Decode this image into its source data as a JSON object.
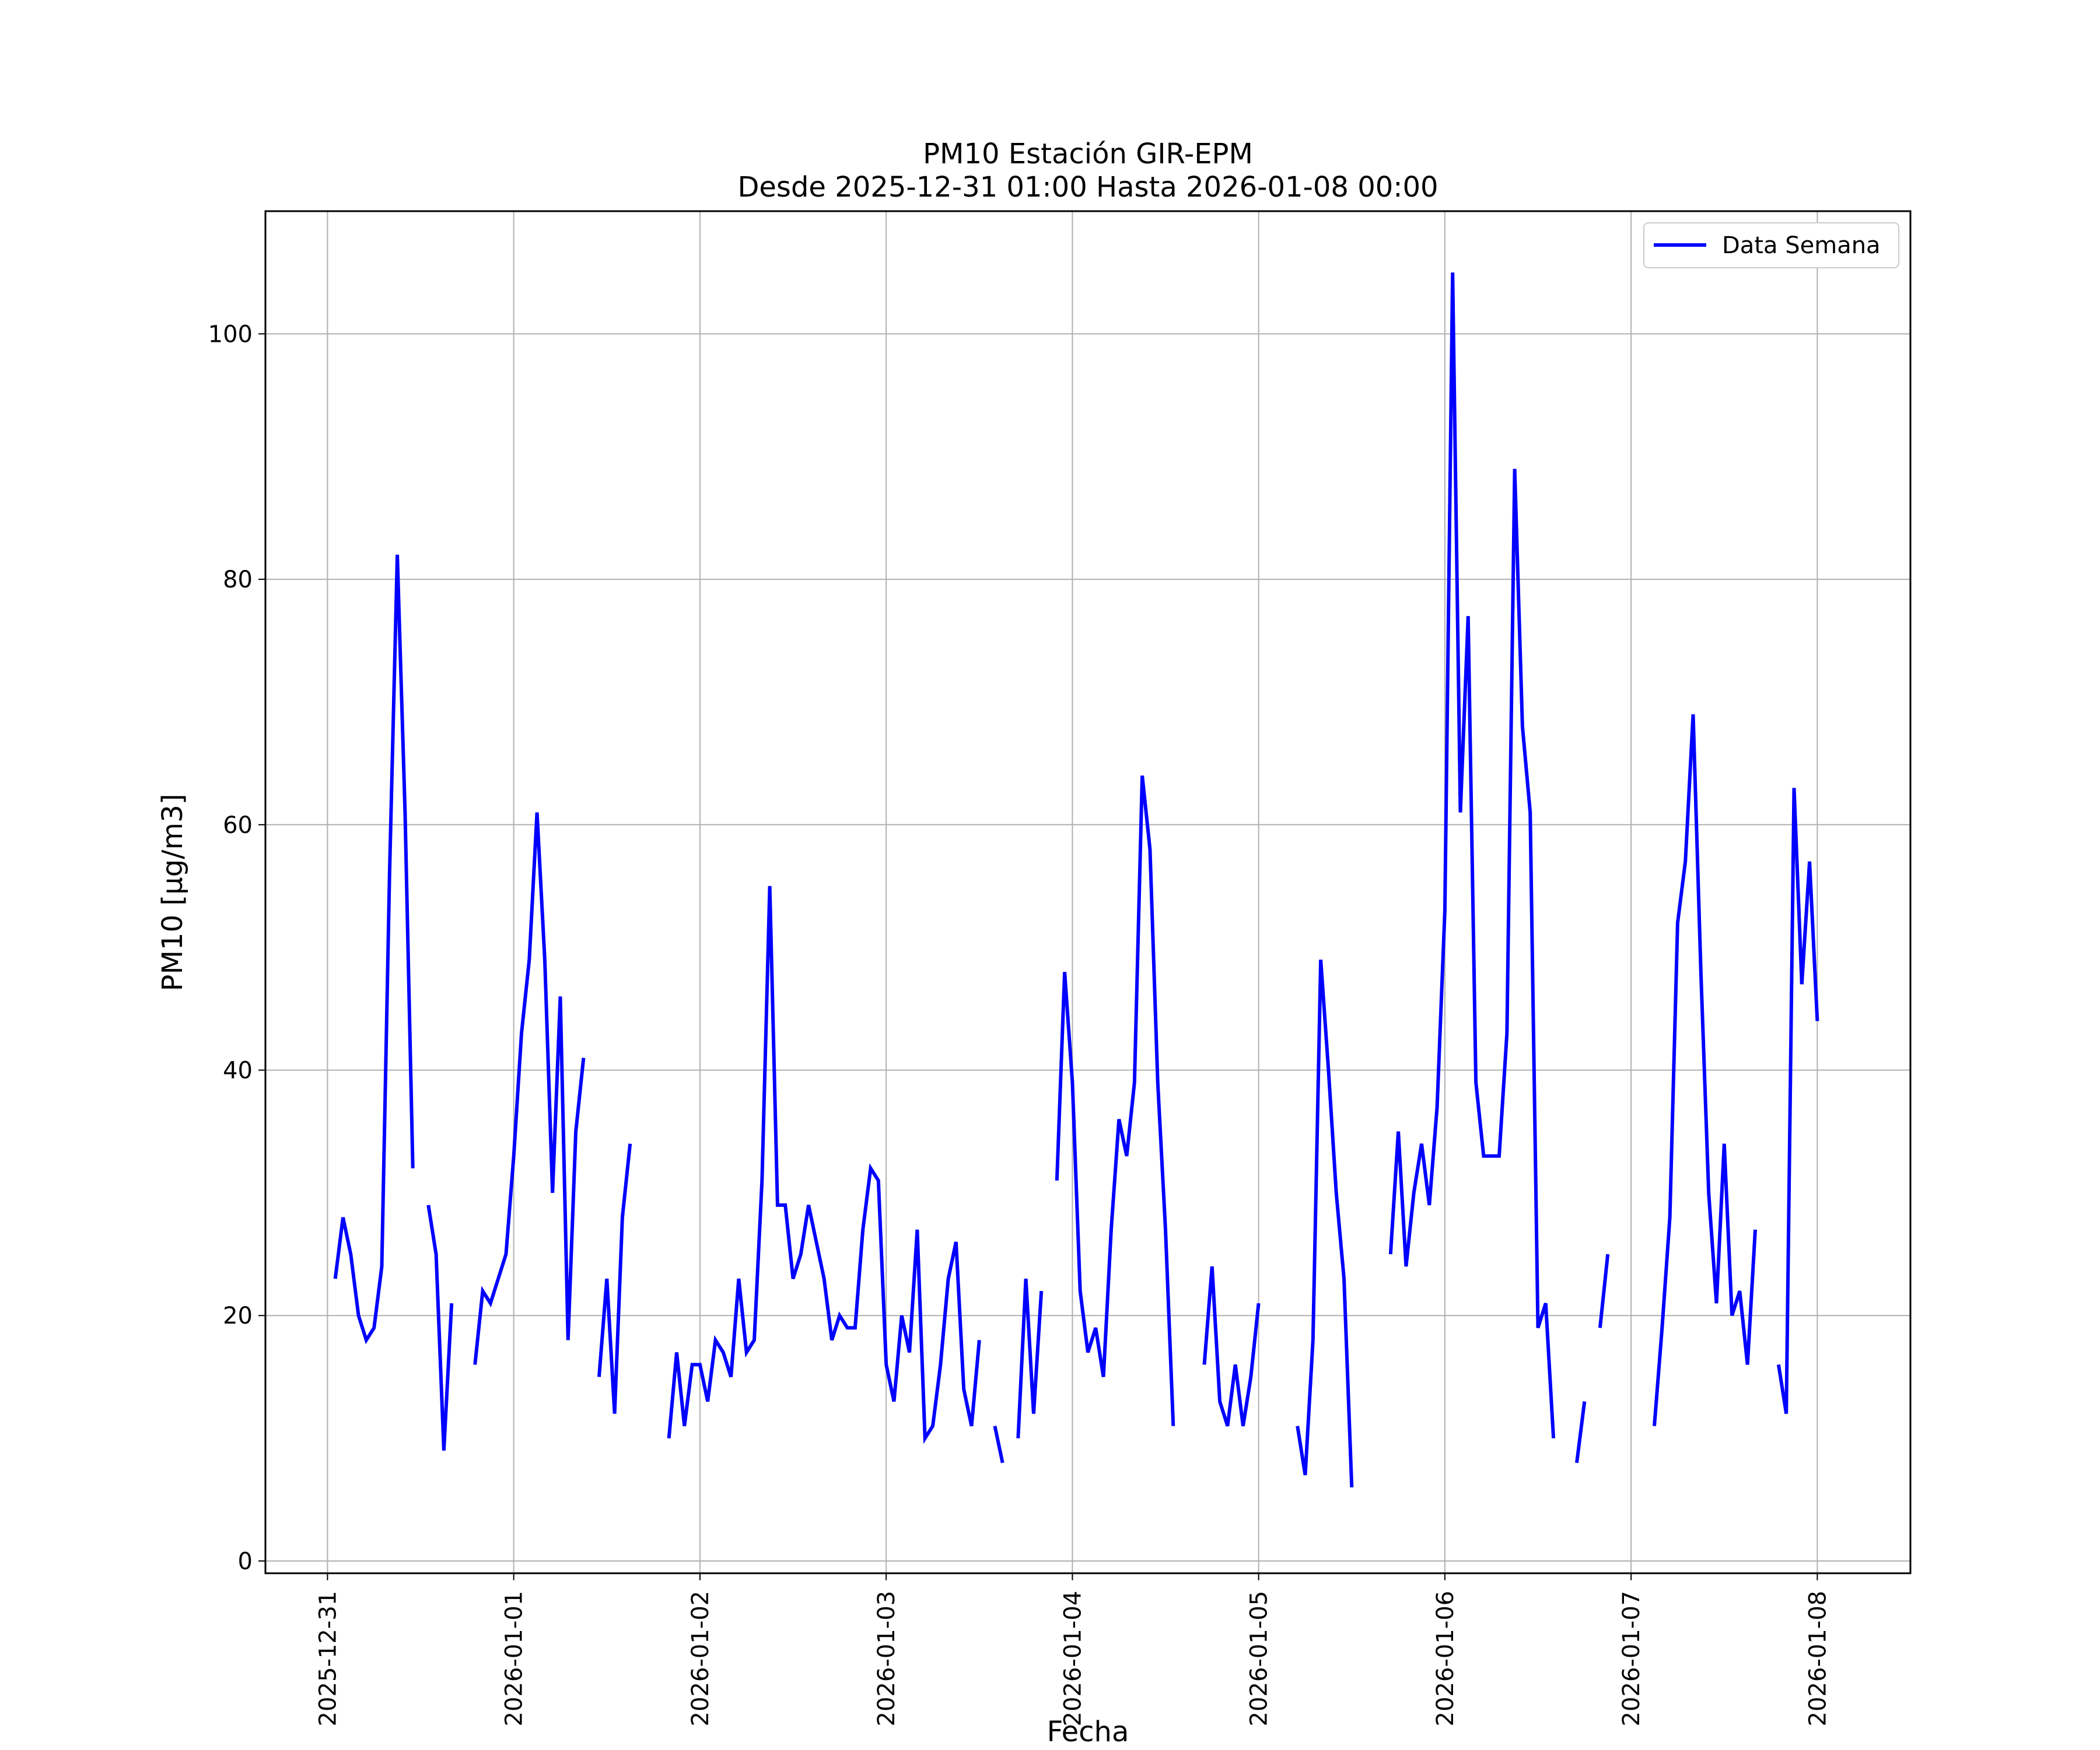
{
  "chart_data": {
    "type": "line",
    "title": "PM10 Estación GIR-EPM",
    "subtitle": "Desde 2025-12-31 01:00 Hasta 2026-01-08 00:00",
    "xlabel": "Fecha",
    "ylabel": "PM10 [μg/m3]",
    "xlim": [
      "2025-12-30 16:00",
      "2026-01-08 12:00"
    ],
    "ylim": [
      -1,
      110
    ],
    "yticks": [
      0,
      20,
      40,
      60,
      80,
      100
    ],
    "xticks": [
      "2025-12-31",
      "2026-01-01",
      "2026-01-02",
      "2026-01-03",
      "2026-01-04",
      "2026-01-05",
      "2026-01-06",
      "2026-01-07",
      "2026-01-08"
    ],
    "grid": true,
    "legend": {
      "position": "top-right"
    },
    "series": [
      {
        "name": "Data Semana",
        "color": "#0000ff",
        "segments": [
          [
            [
              "2025-12-31 01:00",
              23
            ],
            [
              "2025-12-31 02:00",
              28
            ],
            [
              "2025-12-31 03:00",
              25
            ],
            [
              "2025-12-31 04:00",
              20
            ],
            [
              "2025-12-31 05:00",
              18
            ],
            [
              "2025-12-31 06:00",
              19
            ],
            [
              "2025-12-31 07:00",
              24
            ],
            [
              "2025-12-31 08:00",
              56
            ],
            [
              "2025-12-31 09:00",
              82
            ],
            [
              "2025-12-31 10:00",
              61
            ],
            [
              "2025-12-31 11:00",
              32
            ]
          ],
          [
            [
              "2025-12-31 13:00",
              29
            ],
            [
              "2025-12-31 14:00",
              25
            ],
            [
              "2025-12-31 15:00",
              9
            ],
            [
              "2025-12-31 16:00",
              21
            ]
          ],
          [
            [
              "2025-12-31 19:00",
              16
            ],
            [
              "2025-12-31 20:00",
              22
            ],
            [
              "2025-12-31 21:00",
              21
            ],
            [
              "2025-12-31 22:00",
              23
            ],
            [
              "2025-12-31 23:00",
              25
            ],
            [
              "2026-01-01 00:00",
              33
            ],
            [
              "2026-01-01 01:00",
              43
            ],
            [
              "2026-01-01 02:00",
              49
            ],
            [
              "2026-01-01 03:00",
              61
            ],
            [
              "2026-01-01 04:00",
              49
            ],
            [
              "2026-01-01 05:00",
              30
            ],
            [
              "2026-01-01 06:00",
              46
            ],
            [
              "2026-01-01 07:00",
              18
            ],
            [
              "2026-01-01 08:00",
              35
            ],
            [
              "2026-01-01 09:00",
              41
            ]
          ],
          [
            [
              "2026-01-01 11:00",
              15
            ],
            [
              "2026-01-01 12:00",
              23
            ],
            [
              "2026-01-01 13:00",
              12
            ],
            [
              "2026-01-01 14:00",
              28
            ],
            [
              "2026-01-01 15:00",
              34
            ]
          ],
          [
            [
              "2026-01-01 20:00",
              10
            ],
            [
              "2026-01-01 21:00",
              17
            ],
            [
              "2026-01-01 22:00",
              11
            ],
            [
              "2026-01-01 23:00",
              16
            ],
            [
              "2026-01-02 00:00",
              16
            ],
            [
              "2026-01-02 01:00",
              13
            ],
            [
              "2026-01-02 02:00",
              18
            ],
            [
              "2026-01-02 03:00",
              17
            ],
            [
              "2026-01-02 04:00",
              15
            ],
            [
              "2026-01-02 05:00",
              23
            ],
            [
              "2026-01-02 06:00",
              17
            ],
            [
              "2026-01-02 07:00",
              18
            ],
            [
              "2026-01-02 08:00",
              31
            ],
            [
              "2026-01-02 09:00",
              55
            ],
            [
              "2026-01-02 10:00",
              29
            ],
            [
              "2026-01-02 11:00",
              29
            ],
            [
              "2026-01-02 12:00",
              23
            ],
            [
              "2026-01-02 13:00",
              25
            ],
            [
              "2026-01-02 14:00",
              29
            ],
            [
              "2026-01-02 15:00",
              26
            ],
            [
              "2026-01-02 16:00",
              23
            ],
            [
              "2026-01-02 17:00",
              18
            ],
            [
              "2026-01-02 18:00",
              20
            ],
            [
              "2026-01-02 19:00",
              19
            ],
            [
              "2026-01-02 20:00",
              19
            ],
            [
              "2026-01-02 21:00",
              27
            ],
            [
              "2026-01-02 22:00",
              32
            ],
            [
              "2026-01-02 23:00",
              31
            ],
            [
              "2026-01-03 00:00",
              16
            ],
            [
              "2026-01-03 01:00",
              13
            ],
            [
              "2026-01-03 02:00",
              20
            ],
            [
              "2026-01-03 03:00",
              17
            ],
            [
              "2026-01-03 04:00",
              27
            ],
            [
              "2026-01-03 05:00",
              10
            ],
            [
              "2026-01-03 06:00",
              11
            ],
            [
              "2026-01-03 07:00",
              16
            ],
            [
              "2026-01-03 08:00",
              23
            ],
            [
              "2026-01-03 09:00",
              26
            ],
            [
              "2026-01-03 10:00",
              14
            ],
            [
              "2026-01-03 11:00",
              11
            ],
            [
              "2026-01-03 12:00",
              18
            ]
          ],
          [
            [
              "2026-01-03 14:00",
              11
            ],
            [
              "2026-01-03 15:00",
              8
            ]
          ],
          [
            [
              "2026-01-03 17:00",
              10
            ],
            [
              "2026-01-03 18:00",
              23
            ],
            [
              "2026-01-03 19:00",
              12
            ],
            [
              "2026-01-03 20:00",
              22
            ]
          ],
          [
            [
              "2026-01-03 22:00",
              31
            ],
            [
              "2026-01-03 23:00",
              48
            ],
            [
              "2026-01-04 00:00",
              39
            ],
            [
              "2026-01-04 01:00",
              22
            ],
            [
              "2026-01-04 02:00",
              17
            ],
            [
              "2026-01-04 03:00",
              19
            ],
            [
              "2026-01-04 04:00",
              15
            ],
            [
              "2026-01-04 05:00",
              27
            ],
            [
              "2026-01-04 06:00",
              36
            ],
            [
              "2026-01-04 07:00",
              33
            ],
            [
              "2026-01-04 08:00",
              39
            ],
            [
              "2026-01-04 09:00",
              64
            ],
            [
              "2026-01-04 10:00",
              58
            ],
            [
              "2026-01-04 11:00",
              39
            ],
            [
              "2026-01-04 12:00",
              27
            ],
            [
              "2026-01-04 13:00",
              11
            ]
          ],
          [
            [
              "2026-01-04 17:00",
              16
            ],
            [
              "2026-01-04 18:00",
              24
            ],
            [
              "2026-01-04 19:00",
              13
            ],
            [
              "2026-01-04 20:00",
              11
            ],
            [
              "2026-01-04 21:00",
              16
            ],
            [
              "2026-01-04 22:00",
              11
            ],
            [
              "2026-01-04 23:00",
              15
            ],
            [
              "2026-01-05 00:00",
              21
            ]
          ],
          [
            [
              "2026-01-05 05:00",
              11
            ],
            [
              "2026-01-05 06:00",
              7
            ],
            [
              "2026-01-05 07:00",
              18
            ],
            [
              "2026-01-05 08:00",
              49
            ],
            [
              "2026-01-05 09:00",
              40
            ],
            [
              "2026-01-05 10:00",
              30
            ],
            [
              "2026-01-05 11:00",
              23
            ],
            [
              "2026-01-05 12:00",
              6
            ]
          ],
          [
            [
              "2026-01-05 17:00",
              25
            ],
            [
              "2026-01-05 18:00",
              35
            ],
            [
              "2026-01-05 19:00",
              24
            ],
            [
              "2026-01-05 20:00",
              30
            ],
            [
              "2026-01-05 21:00",
              34
            ],
            [
              "2026-01-05 22:00",
              29
            ],
            [
              "2026-01-05 23:00",
              37
            ],
            [
              "2026-01-06 00:00",
              53
            ],
            [
              "2026-01-06 01:00",
              105
            ],
            [
              "2026-01-06 02:00",
              61
            ],
            [
              "2026-01-06 03:00",
              77
            ],
            [
              "2026-01-06 04:00",
              39
            ],
            [
              "2026-01-06 05:00",
              33
            ],
            [
              "2026-01-06 06:00",
              33
            ],
            [
              "2026-01-06 07:00",
              33
            ],
            [
              "2026-01-06 08:00",
              43
            ],
            [
              "2026-01-06 09:00",
              89
            ],
            [
              "2026-01-06 10:00",
              68
            ],
            [
              "2026-01-06 11:00",
              61
            ],
            [
              "2026-01-06 12:00",
              19
            ],
            [
              "2026-01-06 13:00",
              21
            ],
            [
              "2026-01-06 14:00",
              10
            ]
          ],
          [
            [
              "2026-01-06 17:00",
              8
            ],
            [
              "2026-01-06 18:00",
              13
            ]
          ],
          [
            [
              "2026-01-06 20:00",
              19
            ],
            [
              "2026-01-06 21:00",
              25
            ]
          ],
          [
            [
              "2026-01-07 03:00",
              11
            ],
            [
              "2026-01-07 04:00",
              19
            ],
            [
              "2026-01-07 05:00",
              28
            ],
            [
              "2026-01-07 06:00",
              52
            ],
            [
              "2026-01-07 07:00",
              57
            ],
            [
              "2026-01-07 08:00",
              69
            ],
            [
              "2026-01-07 09:00",
              48
            ],
            [
              "2026-01-07 10:00",
              30
            ],
            [
              "2026-01-07 11:00",
              21
            ],
            [
              "2026-01-07 12:00",
              34
            ],
            [
              "2026-01-07 13:00",
              20
            ],
            [
              "2026-01-07 14:00",
              22
            ],
            [
              "2026-01-07 15:00",
              16
            ],
            [
              "2026-01-07 16:00",
              27
            ]
          ],
          [
            [
              "2026-01-07 19:00",
              16
            ],
            [
              "2026-01-07 20:00",
              12
            ],
            [
              "2026-01-07 21:00",
              63
            ],
            [
              "2026-01-07 22:00",
              47
            ],
            [
              "2026-01-07 23:00",
              57
            ],
            [
              "2026-01-08 00:00",
              44
            ]
          ]
        ]
      }
    ]
  }
}
